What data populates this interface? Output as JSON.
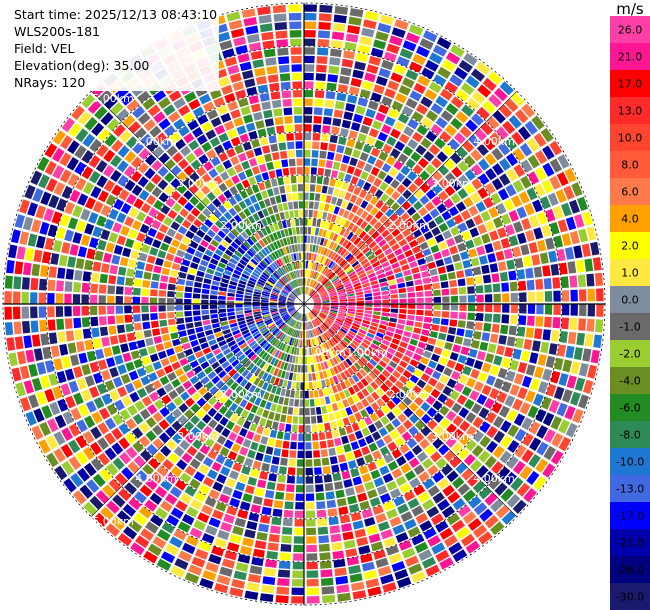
{
  "info": {
    "start_time": "Start time: 2025/12/13 08:43:10",
    "station": "WLS200s-181",
    "field": "Field: VEL",
    "elevation": "Elevation(deg): 35.00",
    "nrays": "NRays: 120"
  },
  "range_labels": [
    "1.00km",
    "1.00km",
    "2.00km",
    "2.00km",
    "2.00km",
    "2.00km",
    "3.00km",
    "3.00km",
    "3.00km",
    "3.00km",
    "4.00km",
    "4.00km",
    "4.00km",
    "4.00km",
    "5.00km",
    "5.00km",
    "5.00km",
    "5.00km"
  ],
  "colorbar": {
    "unit": "m/s",
    "labels": [
      "26.0",
      "21.0",
      "17.0",
      "13.0",
      "10.0",
      "8.0",
      "6.0",
      "4.0",
      "2.0",
      "1.0",
      "0.0",
      "-1.0",
      "-2.0",
      "-4.0",
      "-6.0",
      "-8.0",
      "-10.0",
      "-13.0",
      "-17.0",
      "-21.0",
      "-26.0",
      "-30.0"
    ],
    "colors": [
      "#ff3ea8",
      "#ff1694",
      "#ff0000",
      "#ff2a2a",
      "#ff4530",
      "#ff5a3a",
      "#ff7a4a",
      "#ffa000",
      "#ffff00",
      "#ffe840",
      "#7f8c9e",
      "#6a6a6a",
      "#9acd32",
      "#6b8e23",
      "#228b22",
      "#2e8b57",
      "#1f77d4",
      "#4169e1",
      "#0000ff",
      "#0000aa",
      "#000080",
      "#1a1a6e"
    ]
  }
}
